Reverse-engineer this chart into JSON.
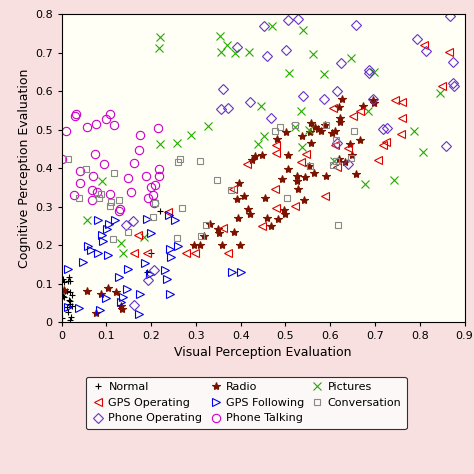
{
  "xlabel": "Visual Perception Evaluation",
  "ylabel": "Cognitive Perception Evaluation",
  "xlim": [
    0,
    0.9
  ],
  "ylim": [
    0,
    0.8
  ],
  "xticks": [
    0,
    0.1,
    0.2,
    0.3,
    0.4,
    0.5,
    0.6,
    0.7,
    0.8,
    0.9
  ],
  "yticks": [
    0,
    0.1,
    0.2,
    0.3,
    0.4,
    0.5,
    0.6,
    0.7,
    0.8
  ],
  "background_color": "#f9e0e0",
  "plot_bg_color": "#fffff5",
  "legend_order": [
    "Normal",
    "GPS Operating",
    "Phone Operating",
    "Radio",
    "GPS Following",
    "Phone Talking",
    "Pictures",
    "Conversation"
  ]
}
